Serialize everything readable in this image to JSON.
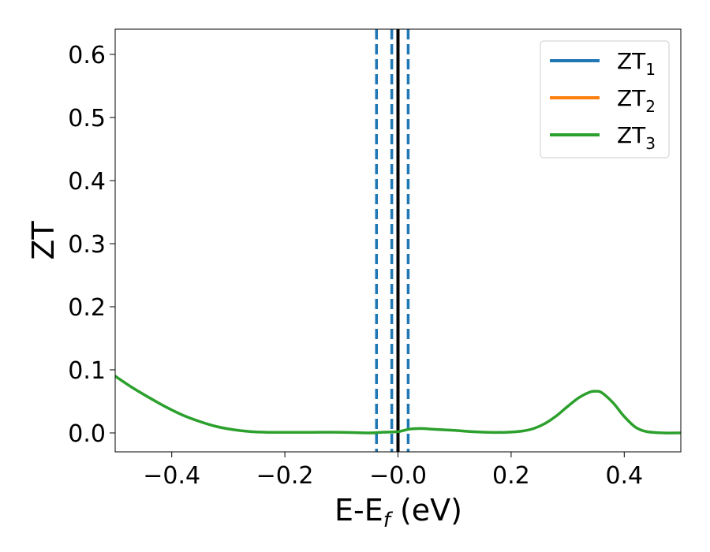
{
  "chart_data": {
    "type": "line",
    "xlabel_main": "E-E",
    "xlabel_sub": "f",
    "xlabel_tail": " (eV)",
    "ylabel": "ZT",
    "xlim": [
      -0.5,
      0.5
    ],
    "ylim": [
      -0.03,
      0.64
    ],
    "xticks": [
      {
        "value": -0.4,
        "label": "−0.4"
      },
      {
        "value": -0.2,
        "label": "−0.2"
      },
      {
        "value": 0.0,
        "label": "−0.0"
      },
      {
        "value": 0.2,
        "label": "0.2"
      },
      {
        "value": 0.4,
        "label": "0.4"
      }
    ],
    "yticks": [
      {
        "value": 0.0,
        "label": "0.0"
      },
      {
        "value": 0.1,
        "label": "0.1"
      },
      {
        "value": 0.2,
        "label": "0.2"
      },
      {
        "value": 0.3,
        "label": "0.3"
      },
      {
        "value": 0.4,
        "label": "0.4"
      },
      {
        "value": 0.5,
        "label": "0.5"
      },
      {
        "value": 0.6,
        "label": "0.6"
      }
    ],
    "legend_position": "top-right",
    "series": [
      {
        "name": "ZT",
        "subscript": "1",
        "color": "#1f77b4",
        "x": [],
        "y": []
      },
      {
        "name": "ZT",
        "subscript": "2",
        "color": "#ff7f0e",
        "x": [],
        "y": []
      },
      {
        "name": "ZT",
        "subscript": "3",
        "color": "#2ca02c",
        "x": [
          -0.5,
          -0.47,
          -0.44,
          -0.41,
          -0.38,
          -0.35,
          -0.32,
          -0.29,
          -0.26,
          -0.23,
          -0.2,
          -0.15,
          -0.1,
          -0.05,
          -0.03,
          0.0,
          0.02,
          0.04,
          0.06,
          0.08,
          0.1,
          0.13,
          0.16,
          0.19,
          0.22,
          0.24,
          0.26,
          0.28,
          0.3,
          0.32,
          0.34,
          0.35,
          0.36,
          0.38,
          0.4,
          0.42,
          0.44,
          0.47,
          0.5
        ],
        "y": [
          0.09,
          0.072,
          0.056,
          0.041,
          0.028,
          0.018,
          0.01,
          0.005,
          0.002,
          0.001,
          0.001,
          0.001,
          0.001,
          0.0,
          0.001,
          0.002,
          0.006,
          0.007,
          0.006,
          0.005,
          0.004,
          0.002,
          0.001,
          0.001,
          0.003,
          0.007,
          0.015,
          0.027,
          0.042,
          0.056,
          0.065,
          0.066,
          0.064,
          0.048,
          0.026,
          0.009,
          0.002,
          0.0,
          0.0
        ]
      }
    ],
    "vertical_lines": [
      {
        "x": -0.038,
        "style": "dashed",
        "color": "#1f77b4"
      },
      {
        "x": -0.011,
        "style": "dashed",
        "color": "#1f77b4"
      },
      {
        "x": 0.018,
        "style": "dashed",
        "color": "#1f77b4"
      },
      {
        "x": 0.0,
        "style": "solid",
        "color": "#000000"
      }
    ]
  }
}
